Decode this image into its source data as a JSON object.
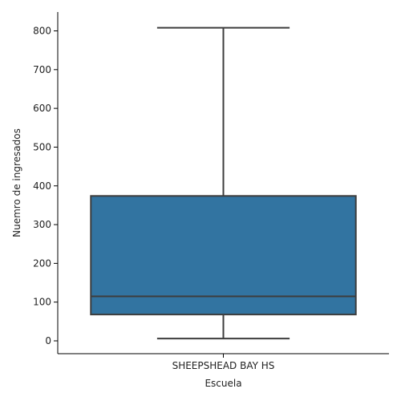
{
  "chart_data": {
    "type": "box",
    "categories": [
      "SHEEPSHEAD BAY HS"
    ],
    "boxes": [
      {
        "category": "SHEEPSHEAD BAY HS",
        "min": 6,
        "q1": 68,
        "median": 115,
        "q3": 374,
        "max": 808
      }
    ],
    "xlabel": "Escuela",
    "ylabel": "Nuemro de ingresados",
    "ylim": [
      -35,
      850
    ],
    "yticks": [
      0,
      100,
      200,
      300,
      400,
      500,
      600,
      700,
      800
    ],
    "grid": false,
    "legend": "none",
    "colors": {
      "box_fill": "#3274a1",
      "lines": "#3d3d3d",
      "axis": "#000000"
    }
  }
}
